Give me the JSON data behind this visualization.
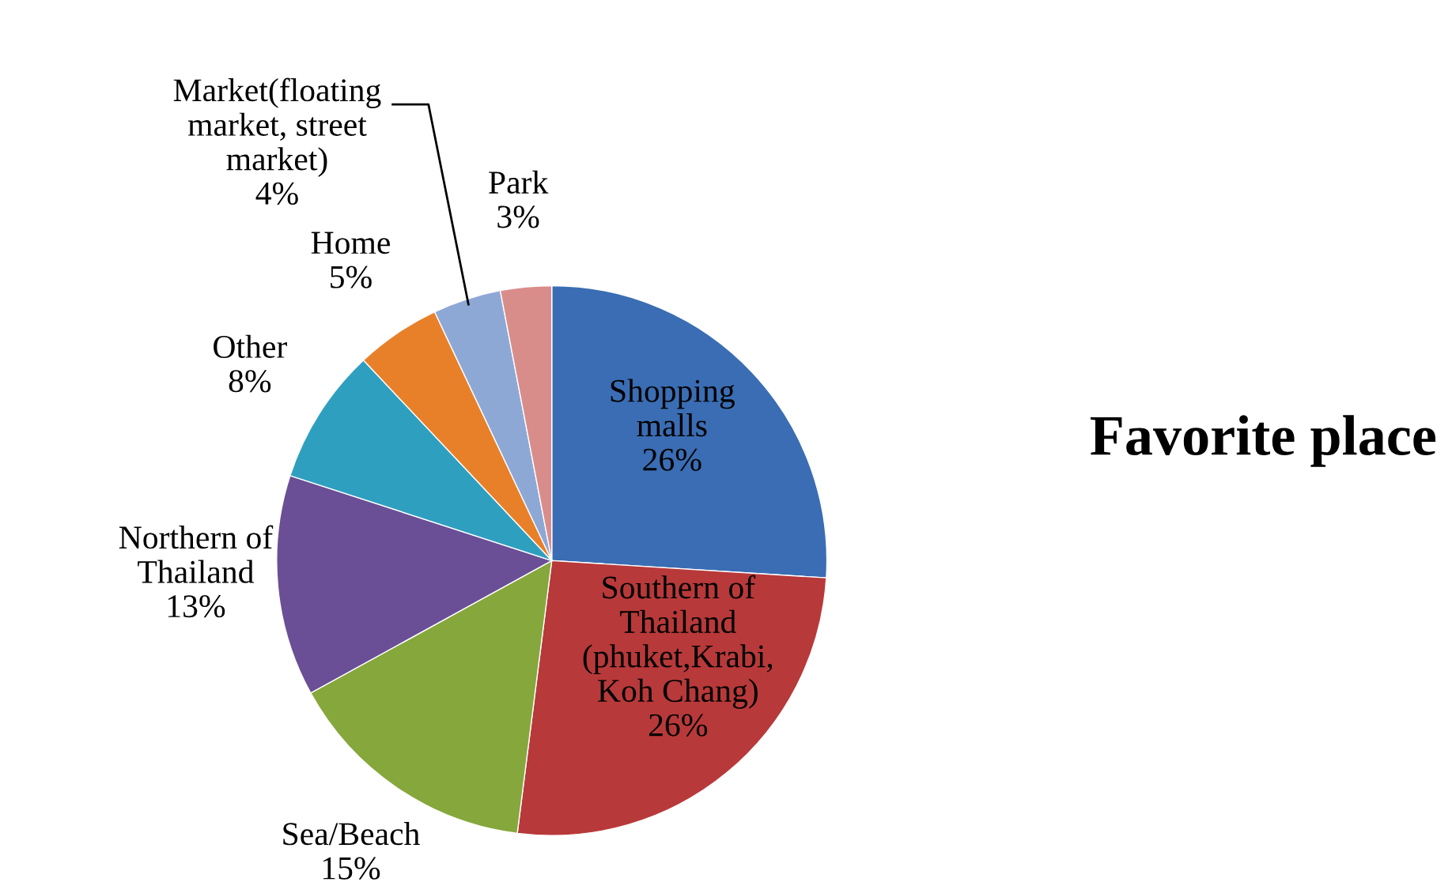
{
  "chart_data": {
    "type": "pie",
    "title": "Favorite place",
    "categories": [
      "Shopping\nmalls",
      "Southern of\nThailand\n(phuket,Krabi,\nKoh Chang)",
      "Sea/Beach",
      "Northern of\nThailand",
      "Other",
      "Home",
      "Market(floating\nmarket, street\nmarket)",
      "Park"
    ],
    "values": [
      26,
      26,
      15,
      13,
      8,
      5,
      4,
      3
    ],
    "value_labels": [
      "26%",
      "26%",
      "15%",
      "13%",
      "8%",
      "5%",
      "4%",
      "3%"
    ],
    "colors": [
      "#3a6db3",
      "#b8393a",
      "#86a73c",
      "#6a4f96",
      "#2f9fc0",
      "#e8802a",
      "#8ea8d6",
      "#d98d8b"
    ],
    "legend": false
  }
}
